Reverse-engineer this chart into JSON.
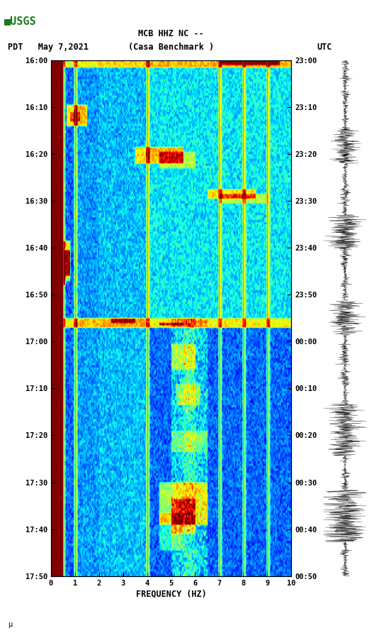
{
  "title_line1": "MCB HHZ NC --",
  "title_line2": "(Casa Benchmark )",
  "left_label": "PDT   May 7,2021",
  "right_label": "UTC",
  "freq_label": "FREQUENCY (HZ)",
  "freq_min": 0,
  "freq_max": 10,
  "pdt_ticks": [
    "16:00",
    "16:10",
    "16:20",
    "16:30",
    "16:40",
    "16:50",
    "17:00",
    "17:10",
    "17:20",
    "17:30",
    "17:40",
    "17:50"
  ],
  "utc_ticks": [
    "23:00",
    "23:10",
    "23:20",
    "23:30",
    "23:40",
    "23:50",
    "00:00",
    "00:10",
    "00:20",
    "00:30",
    "00:40",
    "00:50"
  ],
  "freq_ticks": [
    0,
    1,
    2,
    3,
    4,
    5,
    6,
    7,
    8,
    9,
    10
  ],
  "background_color": "#ffffff",
  "spectrogram_cmap": "jet",
  "vertical_lines_freq": [
    0.5,
    1.0,
    4.0,
    7.0,
    8.0,
    9.0
  ],
  "n_time_bins": 220,
  "n_freq_bins": 200,
  "seed": 12345
}
